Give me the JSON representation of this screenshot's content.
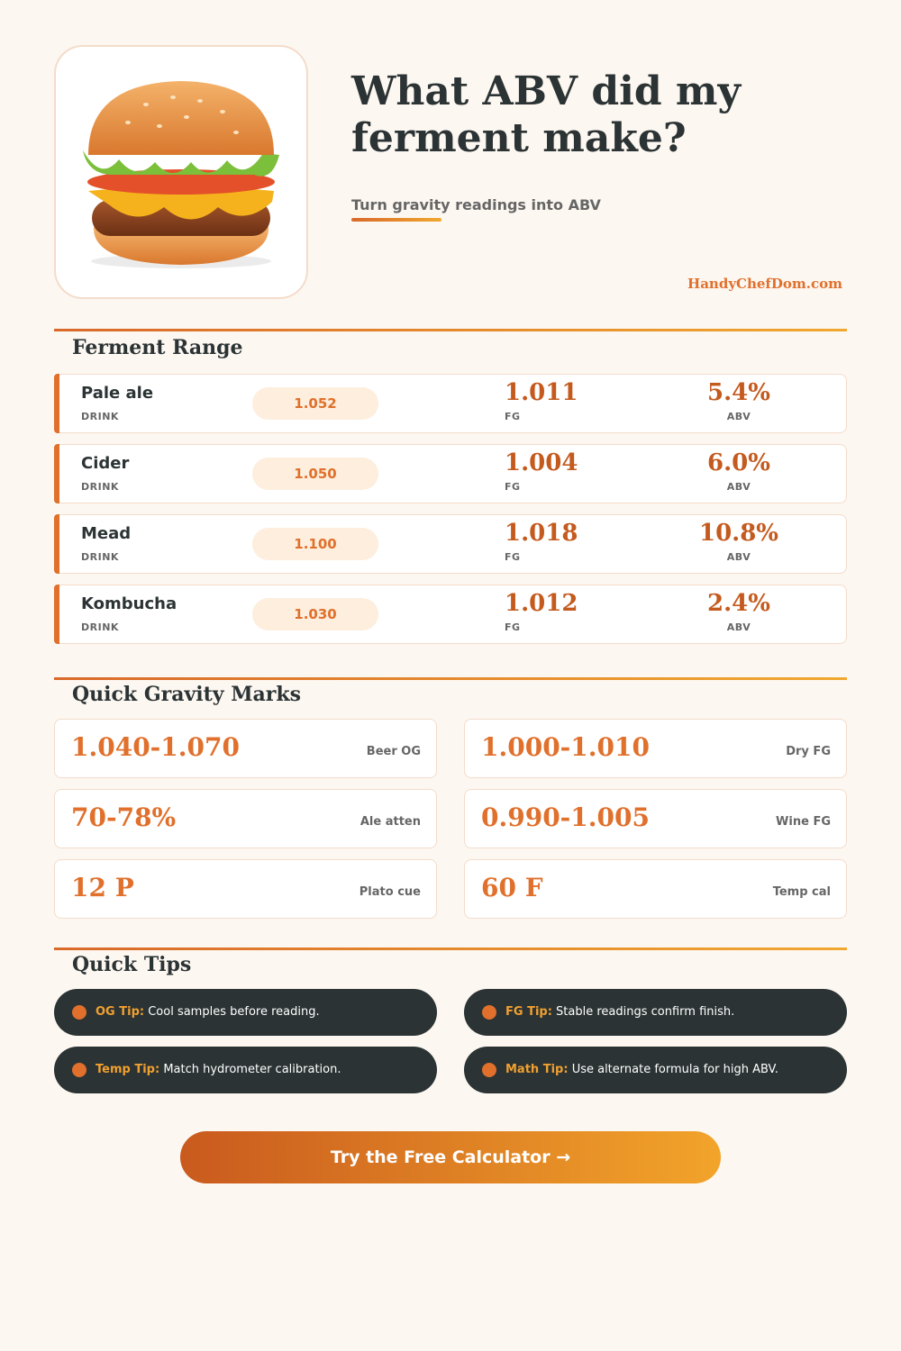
{
  "header": {
    "title": "What ABV did my ferment make?",
    "subtitle": "Turn gravity readings into ABV",
    "site": "HandyChefDom.com"
  },
  "ferment_range": {
    "title": "Ferment Range",
    "rows": [
      {
        "name": "Pale ale",
        "name_label": "DRINK",
        "og": "1.052",
        "fg": "1.011",
        "fg_label": "FG",
        "abv": "5.4%",
        "abv_label": "ABV"
      },
      {
        "name": "Cider",
        "name_label": "DRINK",
        "og": "1.050",
        "fg": "1.004",
        "fg_label": "FG",
        "abv": "6.0%",
        "abv_label": "ABV"
      },
      {
        "name": "Mead",
        "name_label": "DRINK",
        "og": "1.100",
        "fg": "1.018",
        "fg_label": "FG",
        "abv": "10.8%",
        "abv_label": "ABV"
      },
      {
        "name": "Kombucha",
        "name_label": "DRINK",
        "og": "1.030",
        "fg": "1.012",
        "fg_label": "FG",
        "abv": "2.4%",
        "abv_label": "ABV"
      }
    ]
  },
  "gravity_marks": {
    "title": "Quick Gravity Marks",
    "items": [
      {
        "value": "1.040-1.070",
        "label": "Beer OG"
      },
      {
        "value": "1.000-1.010",
        "label": "Dry FG"
      },
      {
        "value": "70-78%",
        "label": "Ale atten"
      },
      {
        "value": "0.990-1.005",
        "label": "Wine FG"
      },
      {
        "value": "12 P",
        "label": "Plato cue"
      },
      {
        "value": "60 F",
        "label": "Temp cal"
      }
    ]
  },
  "tips": {
    "title": "Quick Tips",
    "items": [
      {
        "label": "OG Tip:",
        "text": "Cool samples before reading."
      },
      {
        "label": "FG Tip:",
        "text": "Stable readings confirm finish."
      },
      {
        "label": "Temp Tip:",
        "text": "Match hydrometer calibration."
      },
      {
        "label": "Math Tip:",
        "text": "Use alternate formula for high ABV."
      }
    ]
  },
  "cta": "Try the Free Calculator →"
}
